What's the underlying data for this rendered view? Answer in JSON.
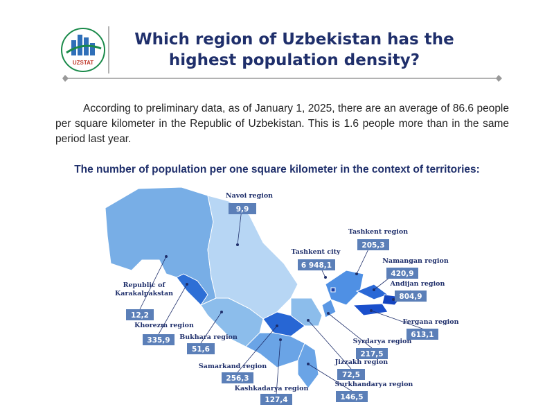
{
  "header": {
    "logo": "UZSTAT",
    "title": [
      "Which region of Uzbekistan has the",
      "highest population density?"
    ]
  },
  "paragraph": "According to preliminary data, as of January 1, 2025, there are an average of 86.6 people per square kilometer in the Republic of Uzbekistan. This is 1.6 people more than in the same period last year.",
  "subtitle": "The number of population per one square kilometer in the context of territories:",
  "regions": [
    {
      "name": [
        "Navoi region"
      ],
      "value": "9,9"
    },
    {
      "name": [
        "Tashkent region"
      ],
      "value": "205,3"
    },
    {
      "name": [
        "Tashkent city"
      ],
      "value": "6 948,1"
    },
    {
      "name": [
        "Namangan region"
      ],
      "value": "420,9"
    },
    {
      "name": [
        "Andijan region"
      ],
      "value": "804,9"
    },
    {
      "name": [
        "Fergana region"
      ],
      "value": "613,1"
    },
    {
      "name": [
        "Syrdarya region"
      ],
      "value": "217,5"
    },
    {
      "name": [
        "Jizzakh region"
      ],
      "value": "72,5"
    },
    {
      "name": [
        "Surkhandarya region"
      ],
      "value": "146,5"
    },
    {
      "name": [
        "Kashkadarya region"
      ],
      "value": "127,4"
    },
    {
      "name": [
        "Samarkand region"
      ],
      "value": "256,3"
    },
    {
      "name": [
        "Bukhara region"
      ],
      "value": "51,6"
    },
    {
      "name": [
        "Khorezm region"
      ],
      "value": "335,9"
    },
    {
      "name": [
        "Republic of",
        "Karakalpakstan"
      ],
      "value": "12,2"
    }
  ]
}
